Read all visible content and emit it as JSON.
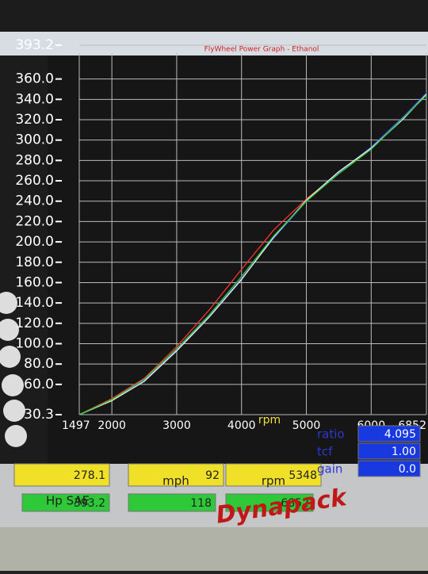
{
  "chart_data": {
    "type": "line",
    "title": "FlyWheel Power Graph - Ethanol",
    "x_label": "rpm",
    "x": [
      1497,
      2000,
      2500,
      3000,
      3500,
      4000,
      4500,
      5000,
      5500,
      6000,
      6500,
      6852
    ],
    "series": [
      {
        "color": "#ff3030",
        "values": [
          30.3,
          46,
          66,
          97,
          133,
          173,
          212,
          242,
          268,
          292,
          322,
          345
        ]
      },
      {
        "color": "#4060ff",
        "values": [
          30.3,
          45,
          64,
          94,
          127,
          164,
          204,
          240,
          268,
          293,
          323,
          346
        ]
      },
      {
        "color": "#f0f0f0",
        "values": [
          30.3,
          44,
          63,
          93,
          126,
          163,
          205,
          241,
          269,
          292,
          321,
          345
        ]
      },
      {
        "color": "#30d030",
        "values": [
          30.3,
          45,
          65,
          95,
          128,
          166,
          206,
          240,
          267,
          291,
          322,
          344
        ]
      }
    ],
    "xlim": [
      1497,
      6852
    ],
    "xticks": [
      1497,
      2000,
      3000,
      4000,
      5000,
      6000,
      6852
    ],
    "ylim": [
      30.3,
      393.2
    ],
    "yticks": [
      30.3,
      {
        "value": 60,
        "label": "60.0"
      },
      {
        "value": 80,
        "label": "80.0"
      },
      {
        "value": 100,
        "label": "100.0"
      },
      {
        "value": 120,
        "label": "120.0"
      },
      {
        "value": 140,
        "label": "140.0"
      },
      {
        "value": 160,
        "label": "160.0"
      },
      {
        "value": 180,
        "label": "180.0"
      },
      {
        "value": 200,
        "label": "200.0"
      },
      {
        "value": 220,
        "label": "220.0"
      },
      {
        "value": 240,
        "label": "240.0"
      },
      {
        "value": 260,
        "label": "260.0"
      },
      {
        "value": 280,
        "label": "280.0"
      },
      {
        "value": 300,
        "label": "300.0"
      },
      {
        "value": 320,
        "label": "320.0"
      },
      {
        "value": 340,
        "label": "340.0"
      },
      {
        "value": 360,
        "label": "360.0"
      },
      393.2
    ],
    "grid": true
  },
  "panel": {
    "row1": [
      "278.1",
      "92",
      "5348"
    ],
    "labels": [
      "Hp SAE",
      "mph",
      "rpm"
    ],
    "row2": [
      "393.2",
      "118",
      "6852"
    ],
    "side_labels": [
      "ratio",
      "tcf",
      "gain"
    ],
    "side_values": [
      "4.095",
      "1.00",
      "0.0"
    ],
    "logo": "Dynapack"
  }
}
